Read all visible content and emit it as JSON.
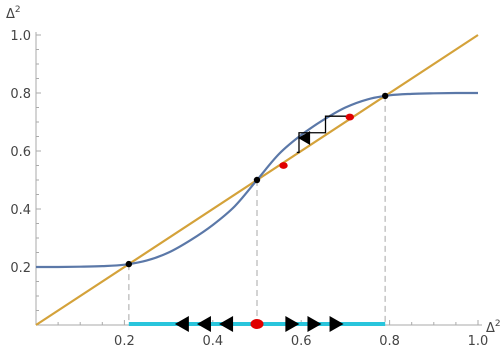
{
  "chart_data": {
    "type": "line",
    "xlabel": "Δ",
    "xlabel_superscript": "2",
    "ylabel": "Δ",
    "ylabel_superscript": "2",
    "xlim": [
      0,
      1.0
    ],
    "ylim": [
      0,
      1.0
    ],
    "x_ticks": [
      {
        "value": 0.2,
        "label": "0.2"
      },
      {
        "value": 0.4,
        "label": "0.4"
      },
      {
        "value": 0.6,
        "label": "0.6"
      },
      {
        "value": 0.8,
        "label": "0.8"
      },
      {
        "value": 1.0,
        "label": "1.0"
      }
    ],
    "y_ticks": [
      {
        "value": 0.2,
        "label": "0.2"
      },
      {
        "value": 0.4,
        "label": "0.4"
      },
      {
        "value": 0.6,
        "label": "0.6"
      },
      {
        "value": 0.8,
        "label": "0.8"
      },
      {
        "value": 1.0,
        "label": "1.0"
      }
    ],
    "grid": false,
    "series": [
      {
        "kind": "diagonal",
        "color": "#d4a23a",
        "points": [
          [
            0.0,
            0.0
          ],
          [
            1.0,
            1.0
          ]
        ]
      },
      {
        "kind": "sigmoid",
        "color": "#5b78a8",
        "points": [
          [
            0.0,
            0.2
          ],
          [
            0.05,
            0.2
          ],
          [
            0.1,
            0.201
          ],
          [
            0.15,
            0.203
          ],
          [
            0.2,
            0.208
          ],
          [
            0.25,
            0.222
          ],
          [
            0.3,
            0.25
          ],
          [
            0.35,
            0.293
          ],
          [
            0.4,
            0.345
          ],
          [
            0.45,
            0.41
          ],
          [
            0.5,
            0.5
          ],
          [
            0.55,
            0.59
          ],
          [
            0.6,
            0.655
          ],
          [
            0.65,
            0.707
          ],
          [
            0.7,
            0.75
          ],
          [
            0.75,
            0.778
          ],
          [
            0.8,
            0.792
          ],
          [
            0.85,
            0.797
          ],
          [
            0.9,
            0.799
          ],
          [
            0.95,
            0.8
          ],
          [
            1.0,
            0.8
          ]
        ]
      }
    ],
    "fixed_points": [
      {
        "x": 0.21,
        "y": 0.21
      },
      {
        "x": 0.5,
        "y": 0.5
      },
      {
        "x": 0.79,
        "y": 0.79
      }
    ],
    "cobweb": {
      "color": "#000000",
      "points": [
        [
          0.71,
          0.72
        ],
        [
          0.655,
          0.72
        ],
        [
          0.655,
          0.663
        ],
        [
          0.595,
          0.663
        ],
        [
          0.595,
          0.595
        ],
        [
          0.59,
          0.595
        ]
      ],
      "arrow_head_at": [
        0.593,
        0.645
      ]
    },
    "red_points": [
      {
        "x": 0.71,
        "y": 0.717
      },
      {
        "x": 0.56,
        "y": 0.55
      }
    ],
    "dashed_guides": {
      "color": "#c8c8c8",
      "x_values": [
        0.21,
        0.5,
        0.79
      ]
    },
    "flow_bar": {
      "color": "#29c5dc",
      "x_range": [
        0.21,
        0.79
      ],
      "left_arrows_x": [
        0.33,
        0.38,
        0.43
      ],
      "right_arrows_x": [
        0.58,
        0.63,
        0.68
      ],
      "center_dot_x": 0.5,
      "center_dot_color": "#e00000",
      "arrow_color": "#000000"
    }
  }
}
